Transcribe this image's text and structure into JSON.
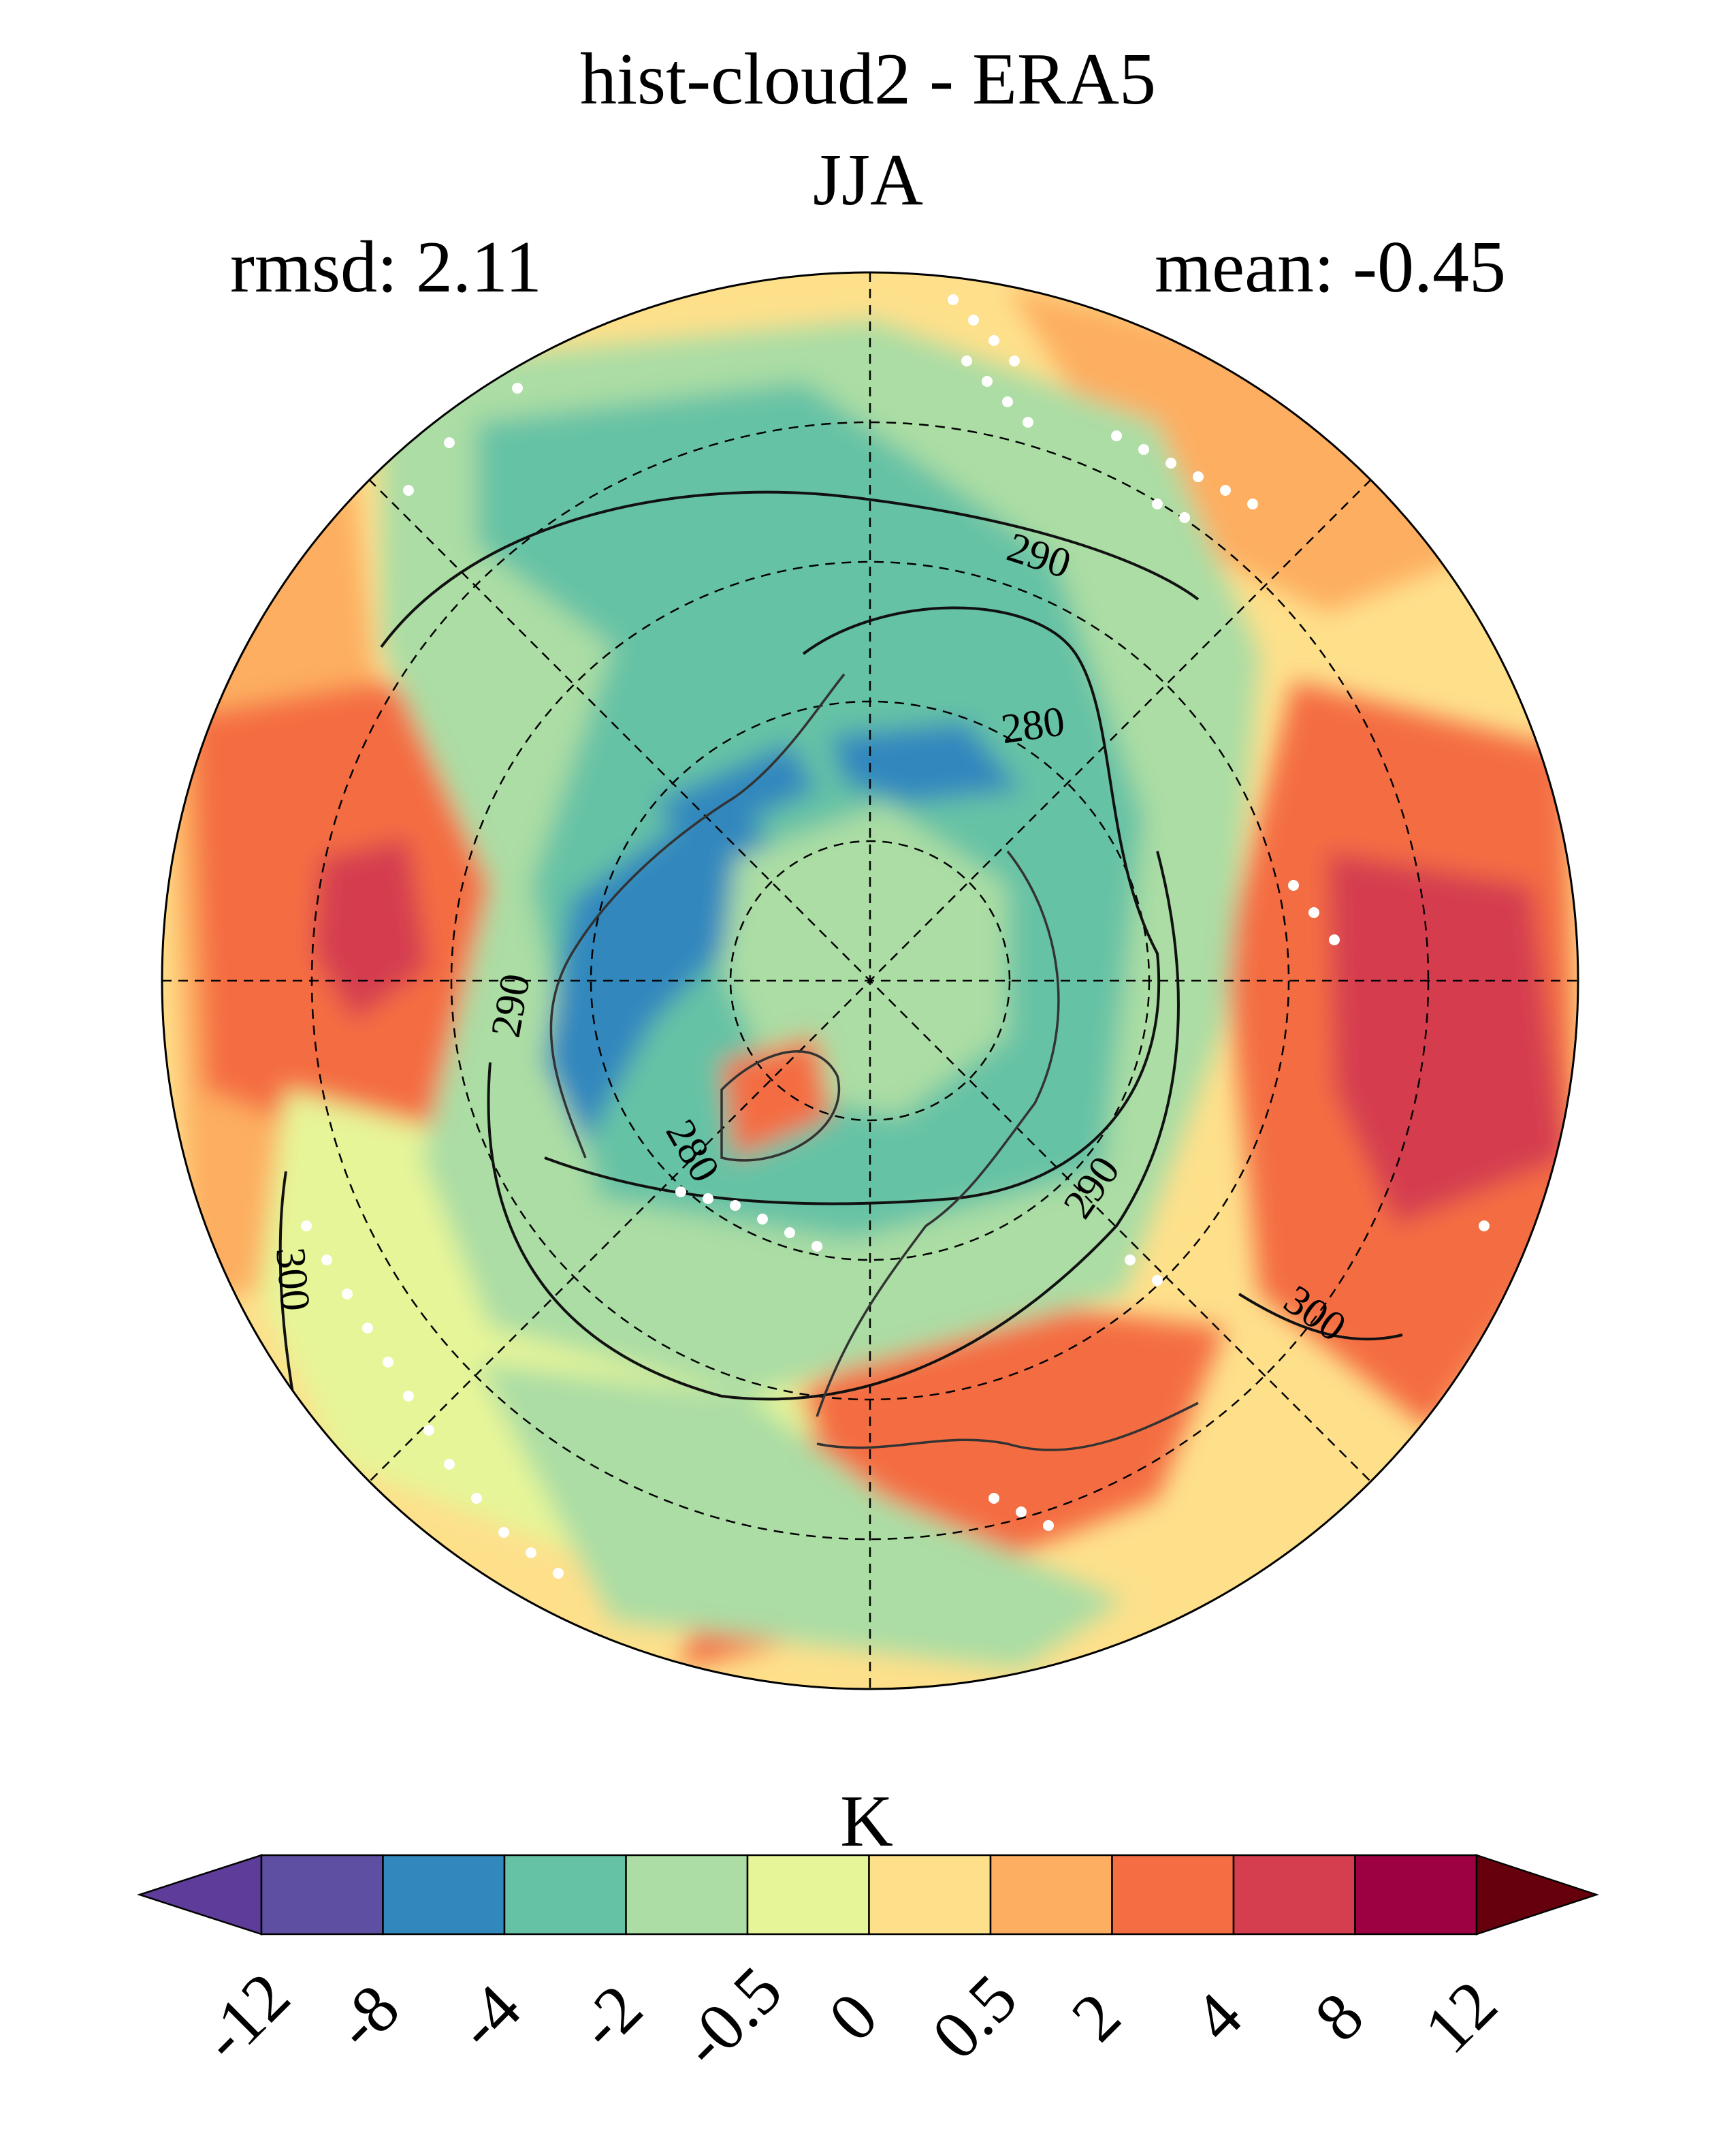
{
  "title": {
    "line1": "hist-cloud2 - ERA5",
    "line2": "JJA",
    "rmsd": "rmsd: 2.11",
    "mean": "mean: -0.45"
  },
  "contour_labels": [
    "290",
    "280",
    "290",
    "280",
    "290",
    "300",
    "300"
  ],
  "colorbar": {
    "unit": "K",
    "levels": [
      "-12",
      "-8",
      "-4",
      "-2",
      "-0.5",
      "0",
      "0.5",
      "2",
      "4",
      "8",
      "12"
    ],
    "colors": [
      "#5e3c99",
      "#5e4fa2",
      "#3288bd",
      "#66c2a5",
      "#abdda4",
      "#e6f598",
      "#fee08b",
      "#fdae61",
      "#f46d43",
      "#d53e4f",
      "#9e0142",
      "#67000d"
    ]
  },
  "map": {
    "projection": "north-polar-stereographic",
    "variable_unit": "K",
    "stippling": "white-dots"
  }
}
